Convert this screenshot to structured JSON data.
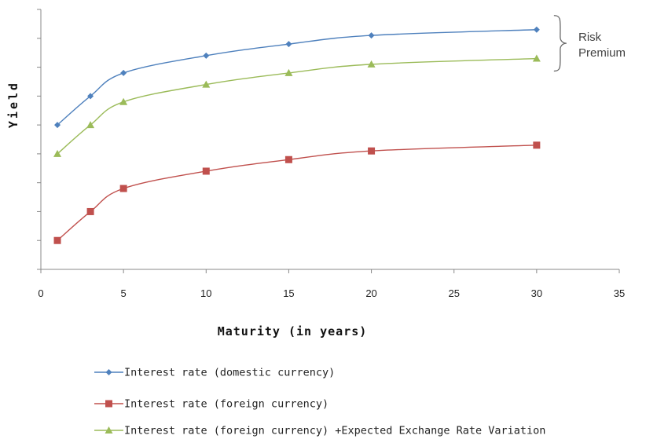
{
  "chart_data": {
    "type": "line",
    "title": "",
    "xlabel": "Maturity (in years)",
    "ylabel": "Yield",
    "xlim": [
      0,
      35
    ],
    "xticks": [
      0,
      5,
      10,
      15,
      20,
      25,
      30,
      35
    ],
    "ylim": [
      0,
      9
    ],
    "y_tick_labels_shown": false,
    "grid": false,
    "legend_position": "bottom-center",
    "x": [
      1,
      3,
      5,
      10,
      15,
      20,
      30
    ],
    "series": [
      {
        "name": "Interest rate (domestic currency)",
        "color": "#4F81BD",
        "marker": "diamond",
        "values": [
          5.0,
          6.0,
          6.8,
          7.4,
          7.8,
          8.1,
          8.3
        ]
      },
      {
        "name": "Interest rate (foreign currency)",
        "color": "#C0504D",
        "marker": "square",
        "values": [
          1.0,
          2.0,
          2.8,
          3.4,
          3.8,
          4.1,
          4.3
        ]
      },
      {
        "name": "Interest rate (foreign currency) +Expected Exchange Rate Variation",
        "color": "#9BBB59",
        "marker": "triangle",
        "values": [
          4.0,
          5.0,
          5.8,
          6.4,
          6.8,
          7.1,
          7.3
        ]
      }
    ],
    "annotations": [
      {
        "text_line1": "Risk",
        "text_line2": "Premium",
        "type": "curly-brace",
        "between_series": [
          0,
          2
        ]
      }
    ]
  }
}
